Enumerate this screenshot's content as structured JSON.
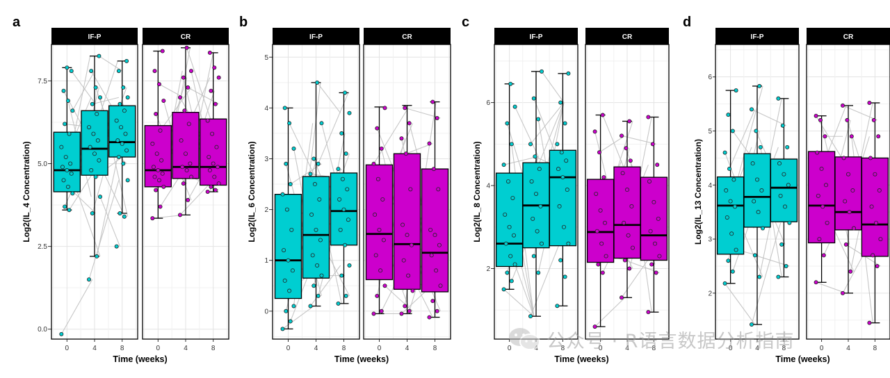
{
  "chart_data": [
    {
      "type": "boxplot",
      "panel_label": "a",
      "ylabel": "Log2(IL_4 Concentration)",
      "xlabel": "Time (weeks)",
      "facets": [
        "IF-P",
        "CR"
      ],
      "categories": [
        "0",
        "4",
        "8"
      ],
      "ylim": [
        -0.3,
        8.6
      ],
      "yticks": [
        0.0,
        2.5,
        5.0,
        7.5
      ],
      "ytick_labels": [
        "0.0",
        "2.5",
        "5.0",
        "7.5"
      ],
      "groups": [
        {
          "name": "IF-P",
          "color": "#00CED1",
          "boxes": [
            {
              "x": "0",
              "min": 3.6,
              "q1": 4.15,
              "median": 4.8,
              "q3": 5.95,
              "max": 7.9,
              "points": [
                -0.15,
                3.6,
                3.7,
                4.1,
                4.3,
                4.5,
                4.7,
                4.8,
                4.9,
                5.0,
                5.2,
                5.5,
                5.9,
                6.2,
                6.6,
                6.9,
                7.2,
                7.8,
                7.9
              ]
            },
            {
              "x": "4",
              "min": 2.2,
              "q1": 4.65,
              "median": 5.45,
              "q3": 6.6,
              "max": 8.25,
              "points": [
                1.5,
                2.2,
                3.5,
                4.0,
                4.6,
                4.8,
                5.1,
                5.3,
                5.5,
                5.7,
                5.9,
                6.1,
                6.5,
                6.8,
                7.0,
                7.3,
                7.8,
                8.25
              ]
            },
            {
              "x": "8",
              "min": 3.5,
              "q1": 5.2,
              "median": 5.65,
              "q3": 6.75,
              "max": 8.1,
              "points": [
                2.5,
                3.4,
                3.5,
                4.5,
                5.0,
                5.2,
                5.4,
                5.6,
                5.7,
                5.9,
                6.1,
                6.3,
                6.6,
                6.8,
                7.0,
                7.3,
                7.8,
                8.1
              ]
            }
          ]
        },
        {
          "name": "CR",
          "color": "#CC00CC",
          "boxes": [
            {
              "x": "0",
              "min": 3.35,
              "q1": 4.3,
              "median": 4.8,
              "q3": 6.15,
              "max": 8.4,
              "points": [
                3.35,
                3.7,
                4.2,
                4.3,
                4.5,
                4.6,
                4.7,
                4.8,
                4.9,
                5.1,
                5.3,
                5.6,
                6.0,
                6.5,
                6.9,
                7.4,
                7.8,
                8.4
              ]
            },
            {
              "x": "4",
              "min": 3.45,
              "q1": 4.55,
              "median": 4.9,
              "q3": 6.55,
              "max": 8.5,
              "points": [
                3.45,
                3.9,
                4.4,
                4.6,
                4.8,
                4.9,
                5.0,
                5.3,
                5.7,
                6.2,
                6.6,
                7.0,
                7.3,
                7.6,
                7.8,
                8.5
              ]
            },
            {
              "x": "8",
              "min": 4.15,
              "q1": 4.35,
              "median": 4.9,
              "q3": 6.35,
              "max": 8.35,
              "points": [
                4.15,
                4.2,
                4.3,
                4.4,
                4.6,
                4.8,
                4.9,
                5.0,
                5.2,
                5.5,
                5.9,
                6.3,
                6.8,
                7.2,
                7.6,
                7.9,
                8.35
              ]
            }
          ]
        }
      ]
    },
    {
      "type": "boxplot",
      "panel_label": "b",
      "ylabel": "Log2(IL_6 Concentration)",
      "xlabel": "Time (weeks)",
      "facets": [
        "IF-P",
        "CR"
      ],
      "categories": [
        "0",
        "4",
        "8"
      ],
      "ylim": [
        -0.55,
        5.25
      ],
      "yticks": [
        0,
        1,
        2,
        3,
        4,
        5
      ],
      "ytick_labels": [
        "0",
        "1",
        "2",
        "3",
        "4",
        "5"
      ],
      "groups": [
        {
          "name": "IF-P",
          "color": "#00CED1",
          "boxes": [
            {
              "x": "0",
              "min": -0.35,
              "q1": 0.25,
              "median": 1.0,
              "q3": 2.3,
              "max": 4.0,
              "points": [
                -0.35,
                -0.2,
                0.0,
                0.1,
                0.4,
                0.6,
                0.8,
                1.0,
                1.2,
                1.6,
                2.0,
                2.3,
                2.5,
                2.9,
                3.2,
                3.7,
                4.0
              ]
            },
            {
              "x": "4",
              "min": 0.1,
              "q1": 0.65,
              "median": 1.5,
              "q3": 2.65,
              "max": 4.5,
              "points": [
                0.1,
                0.3,
                0.5,
                0.7,
                0.9,
                1.1,
                1.4,
                1.6,
                1.9,
                2.2,
                2.5,
                2.7,
                2.9,
                3.0,
                3.7,
                4.5
              ]
            },
            {
              "x": "8",
              "min": 0.15,
              "q1": 1.3,
              "median": 1.97,
              "q3": 2.72,
              "max": 4.3,
              "points": [
                0.15,
                0.3,
                0.7,
                0.9,
                1.3,
                1.6,
                1.8,
                2.0,
                2.2,
                2.4,
                2.6,
                2.8,
                3.1,
                3.5,
                3.9,
                4.3
              ]
            }
          ]
        },
        {
          "name": "CR",
          "color": "#CC00CC",
          "boxes": [
            {
              "x": "0",
              "min": -0.05,
              "q1": 0.62,
              "median": 1.52,
              "q3": 2.88,
              "max": 4.02,
              "points": [
                -0.05,
                0.0,
                0.3,
                0.5,
                0.8,
                1.1,
                1.4,
                1.6,
                1.9,
                2.2,
                2.6,
                2.9,
                3.2,
                3.6,
                4.0
              ]
            },
            {
              "x": "4",
              "min": -0.05,
              "q1": 0.43,
              "median": 1.32,
              "q3": 3.1,
              "max": 4.05,
              "points": [
                -0.05,
                0.0,
                0.1,
                0.4,
                0.7,
                1.0,
                1.3,
                1.5,
                1.7,
                2.4,
                3.1,
                3.4,
                3.7,
                4.0
              ]
            },
            {
              "x": "8",
              "min": -0.12,
              "q1": 0.38,
              "median": 1.15,
              "q3": 2.8,
              "max": 4.12,
              "points": [
                -0.12,
                0.0,
                0.2,
                0.5,
                0.8,
                1.1,
                1.3,
                1.5,
                1.6,
                2.4,
                2.8,
                3.3,
                3.8,
                4.12
              ]
            }
          ]
        }
      ]
    },
    {
      "type": "boxplot",
      "panel_label": "c",
      "ylabel": "Log2(IL_8 Concentration)",
      "xlabel": "Time (weeks)",
      "facets": [
        "IF-P",
        "CR"
      ],
      "categories": [
        "0",
        "4",
        "8"
      ],
      "ylim": [
        0.3,
        7.4
      ],
      "yticks": [
        2,
        4,
        6
      ],
      "ytick_labels": [
        "2",
        "4",
        "6"
      ],
      "groups": [
        {
          "name": "IF-P",
          "color": "#00CED1",
          "boxes": [
            {
              "x": "0",
              "min": 1.5,
              "q1": 2.05,
              "median": 2.6,
              "q3": 4.3,
              "max": 6.45,
              "points": [
                1.5,
                1.7,
                1.9,
                2.1,
                2.3,
                2.6,
                2.8,
                3.0,
                3.3,
                3.7,
                4.1,
                4.5,
                5.0,
                5.5,
                5.9,
                6.45
              ]
            },
            {
              "x": "4",
              "min": 0.85,
              "q1": 2.5,
              "median": 3.52,
              "q3": 4.55,
              "max": 6.75,
              "points": [
                0.85,
                1.9,
                2.3,
                2.6,
                2.9,
                3.2,
                3.5,
                3.8,
                4.1,
                4.4,
                4.7,
                5.0,
                5.6,
                6.1,
                6.75
              ]
            },
            {
              "x": "8",
              "min": 1.1,
              "q1": 2.55,
              "median": 4.2,
              "q3": 4.85,
              "max": 6.7,
              "points": [
                1.1,
                1.8,
                2.2,
                2.6,
                3.0,
                3.5,
                3.9,
                4.2,
                4.4,
                4.6,
                4.8,
                5.0,
                5.5,
                6.0,
                6.7
              ]
            }
          ]
        },
        {
          "name": "CR",
          "color": "#CC00CC",
          "boxes": [
            {
              "x": "0",
              "min": 0.6,
              "q1": 2.15,
              "median": 2.88,
              "q3": 4.15,
              "max": 5.7,
              "points": [
                0.6,
                1.9,
                2.1,
                2.3,
                2.6,
                2.9,
                3.1,
                3.4,
                3.8,
                4.2,
                4.8,
                5.3,
                5.7
              ]
            },
            {
              "x": "4",
              "min": 1.3,
              "q1": 2.25,
              "median": 3.05,
              "q3": 4.45,
              "max": 5.55,
              "points": [
                1.3,
                2.0,
                2.2,
                2.5,
                2.8,
                3.1,
                3.5,
                3.9,
                4.3,
                4.6,
                4.9,
                5.2,
                5.55
              ]
            },
            {
              "x": "8",
              "min": 0.95,
              "q1": 2.2,
              "median": 2.8,
              "q3": 4.2,
              "max": 5.65,
              "points": [
                0.95,
                1.9,
                2.1,
                2.3,
                2.6,
                2.9,
                3.2,
                3.6,
                4.1,
                4.5,
                5.0,
                5.65
              ]
            }
          ]
        }
      ]
    },
    {
      "type": "boxplot",
      "panel_label": "d",
      "ylabel": "Log2(IL_13 Concentration)",
      "xlabel": "Time (weeks)",
      "facets": [
        "IF-P",
        "CR"
      ],
      "categories": [
        "0",
        "4",
        "8"
      ],
      "ylim": [
        1.15,
        6.6
      ],
      "yticks": [
        2,
        3,
        4,
        5,
        6
      ],
      "ytick_labels": [
        "2",
        "3",
        "4",
        "5",
        "6"
      ],
      "groups": [
        {
          "name": "IF-P",
          "color": "#00CED1",
          "boxes": [
            {
              "x": "0",
              "min": 2.18,
              "q1": 2.72,
              "median": 3.62,
              "q3": 4.15,
              "max": 5.75,
              "points": [
                2.18,
                2.4,
                2.6,
                2.8,
                3.1,
                3.4,
                3.6,
                3.7,
                3.9,
                4.1,
                4.3,
                4.6,
                5.0,
                5.3,
                5.75
              ]
            },
            {
              "x": "4",
              "min": 1.42,
              "q1": 3.22,
              "median": 3.78,
              "q3": 4.58,
              "max": 5.83,
              "points": [
                1.42,
                2.3,
                2.7,
                3.2,
                3.5,
                3.7,
                3.9,
                4.1,
                4.4,
                4.7,
                5.0,
                5.4,
                5.83
              ]
            },
            {
              "x": "8",
              "min": 2.3,
              "q1": 3.32,
              "median": 3.95,
              "q3": 4.48,
              "max": 5.6,
              "points": [
                2.3,
                2.5,
                2.9,
                3.3,
                3.6,
                3.8,
                4.0,
                4.2,
                4.4,
                4.7,
                5.1,
                5.6
              ]
            }
          ]
        },
        {
          "name": "CR",
          "color": "#CC00CC",
          "boxes": [
            {
              "x": "0",
              "min": 2.2,
              "q1": 2.93,
              "median": 3.62,
              "q3": 4.62,
              "max": 5.28,
              "points": [
                2.2,
                2.7,
                3.0,
                3.3,
                3.6,
                3.8,
                4.0,
                4.3,
                4.6,
                4.9,
                5.2,
                5.28
              ]
            },
            {
              "x": "4",
              "min": 2.0,
              "q1": 3.17,
              "median": 3.5,
              "q3": 4.52,
              "max": 5.47,
              "points": [
                2.0,
                2.4,
                2.9,
                3.2,
                3.5,
                3.7,
                3.9,
                4.2,
                4.5,
                4.9,
                5.2,
                5.47
              ]
            },
            {
              "x": "8",
              "min": 1.45,
              "q1": 2.68,
              "median": 3.27,
              "q3": 4.5,
              "max": 5.52,
              "points": [
                1.45,
                2.5,
                2.7,
                3.0,
                3.3,
                3.6,
                3.9,
                4.2,
                4.5,
                4.9,
                5.2,
                5.52
              ]
            }
          ]
        }
      ]
    }
  ],
  "watermark": {
    "text": "公众号 · R语言数据分析指南",
    "icon": "wechat-icon"
  }
}
